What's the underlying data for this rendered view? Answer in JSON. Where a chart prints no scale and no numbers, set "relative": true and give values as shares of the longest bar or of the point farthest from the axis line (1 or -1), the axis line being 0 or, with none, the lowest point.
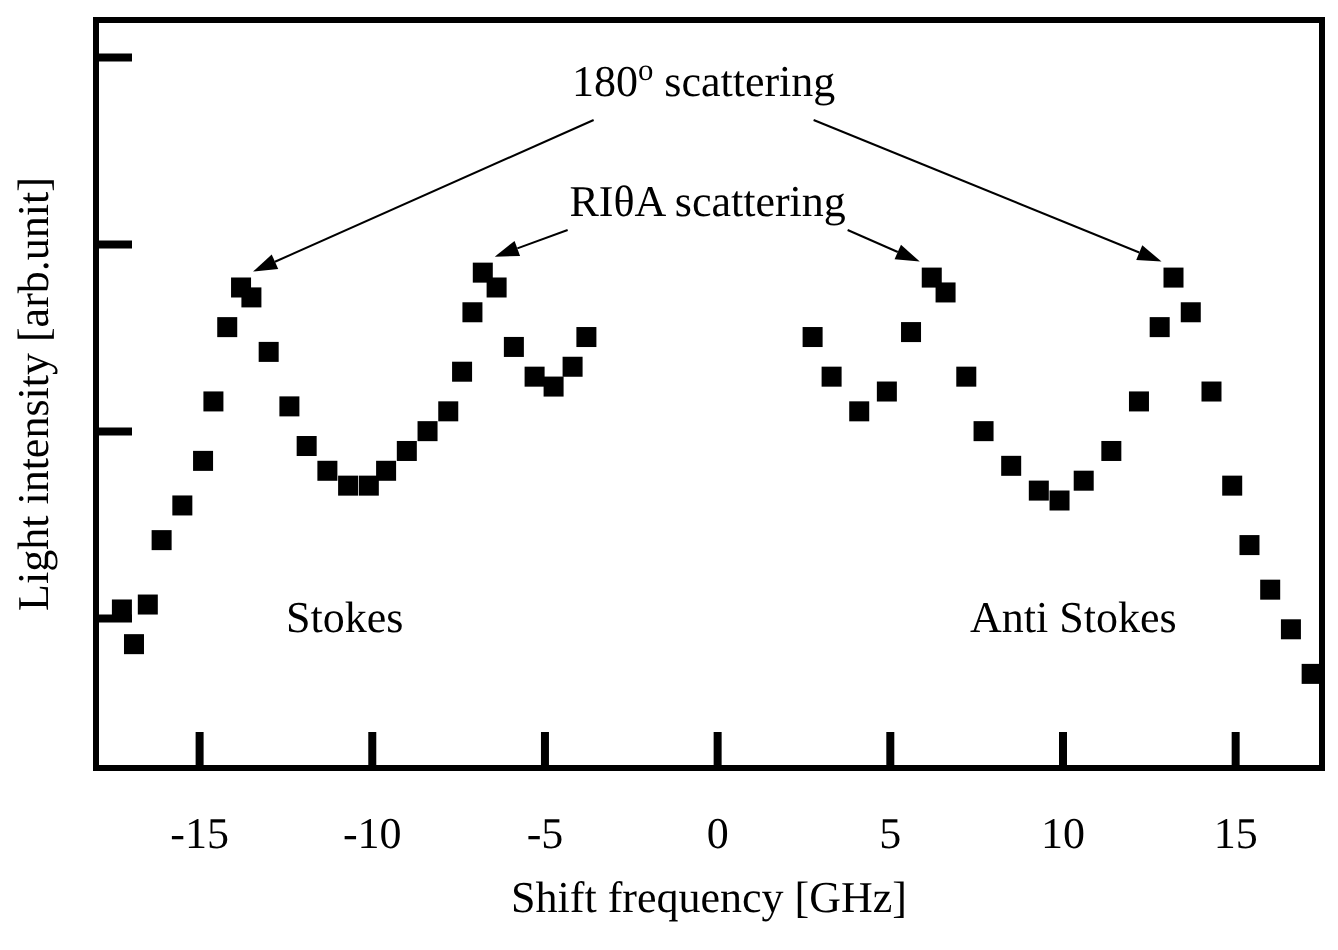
{
  "chart_data": {
    "type": "scatter",
    "relative": true,
    "marker": "square",
    "xlabel": "Shift frequency [GHz]",
    "ylabel": "Light intensity [arb.unit]",
    "xlim": [
      -18,
      17.5
    ],
    "xticks": [
      -15,
      -10,
      -5,
      0,
      5,
      10,
      15
    ],
    "annotations": [
      "180$^{o}$ scattering",
      "RIθA scattering",
      "Stokes",
      "Anti Stokes"
    ],
    "series": [
      {
        "color": "#000000",
        "x": [
          -17.25,
          -16.9,
          -16.5,
          -16.1,
          -15.5,
          -14.9,
          -14.6,
          -14.2,
          -13.8,
          -13.5,
          -13.0,
          -12.4,
          -11.9,
          -11.3,
          -10.7,
          -10.1,
          -9.6,
          -9.0,
          -8.4,
          -7.8,
          -7.4,
          -7.1,
          -6.8,
          -6.4,
          -5.9,
          -5.3,
          -4.75,
          -4.2,
          -3.8
        ],
        "values": [
          0.32,
          0.25,
          0.33,
          0.46,
          0.53,
          0.62,
          0.74,
          0.89,
          0.97,
          0.95,
          0.84,
          0.73,
          0.65,
          0.6,
          0.57,
          0.57,
          0.6,
          0.64,
          0.68,
          0.72,
          0.8,
          0.92,
          1.0,
          0.97,
          0.85,
          0.79,
          0.77,
          0.81,
          0.87
        ]
      },
      {
        "color": "#000000",
        "x": [
          2.75,
          3.3,
          4.1,
          4.9,
          5.6,
          6.2,
          6.6,
          7.2,
          7.7,
          8.5,
          9.3,
          9.9,
          10.6,
          11.4,
          12.2,
          12.8,
          13.2,
          13.7,
          14.3,
          14.9,
          15.4,
          16.0,
          16.6,
          17.2
        ],
        "values": [
          0.87,
          0.79,
          0.72,
          0.76,
          0.88,
          0.99,
          0.96,
          0.79,
          0.68,
          0.61,
          0.56,
          0.54,
          0.58,
          0.64,
          0.74,
          0.89,
          0.99,
          0.92,
          0.76,
          0.57,
          0.45,
          0.36,
          0.28,
          0.19
        ]
      }
    ]
  }
}
